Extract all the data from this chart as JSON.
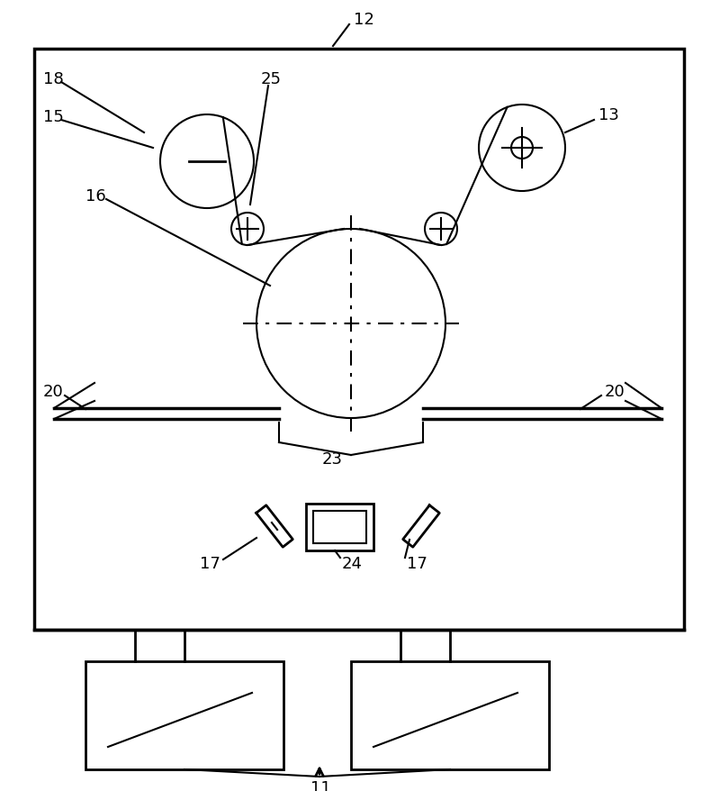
{
  "bg_color": "#ffffff",
  "line_color": "#000000",
  "fig_width": 8.0,
  "fig_height": 8.79,
  "dpi": 100
}
